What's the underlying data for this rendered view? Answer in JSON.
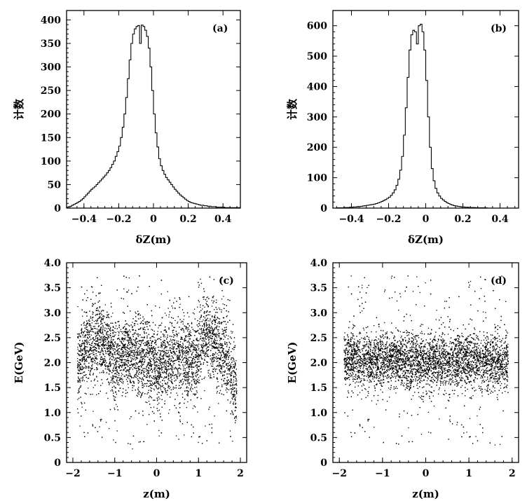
{
  "chart_data": [
    {
      "id": "a",
      "type": "histogram",
      "panel_label": "(a)",
      "xlabel": "δZ(m)",
      "ylabel": "计数",
      "xlim": [
        -0.5,
        0.5
      ],
      "ylim": [
        0,
        420
      ],
      "xticks": [
        -0.4,
        -0.2,
        0,
        0.2,
        0.4
      ],
      "xticklabels": [
        "−0.4",
        "−0.2",
        "0",
        "0.2",
        "0.4"
      ],
      "yticks": [
        0,
        50,
        100,
        150,
        200,
        250,
        300,
        350,
        400
      ],
      "yticklabels": [
        "0",
        "50",
        "100",
        "150",
        "200",
        "250",
        "300",
        "350",
        "400"
      ],
      "bins": {
        "start": -0.5,
        "width": 0.01
      },
      "values": [
        2,
        3,
        4,
        6,
        8,
        10,
        12,
        14,
        17,
        20,
        24,
        28,
        32,
        36,
        40,
        43,
        46,
        50,
        54,
        58,
        62,
        66,
        70,
        75,
        80,
        86,
        93,
        100,
        110,
        120,
        132,
        150,
        172,
        200,
        235,
        275,
        315,
        350,
        370,
        381,
        386,
        388,
        350,
        389,
        386,
        378,
        365,
        340,
        300,
        250,
        200,
        160,
        130,
        105,
        90,
        80,
        72,
        65,
        60,
        55,
        50,
        45,
        40,
        36,
        32,
        28,
        25,
        22,
        19,
        16,
        14,
        12,
        11,
        10,
        9,
        8,
        7,
        6,
        6,
        5,
        5,
        4,
        4,
        3,
        3,
        3,
        2,
        2,
        2,
        2,
        2,
        1,
        1,
        1,
        1,
        1,
        1,
        1,
        1,
        1
      ]
    },
    {
      "id": "b",
      "type": "histogram",
      "panel_label": "(b)",
      "xlabel": "δZ(m)",
      "ylabel": "计数",
      "xlim": [
        -0.5,
        0.5
      ],
      "ylim": [
        0,
        650
      ],
      "xticks": [
        -0.4,
        -0.2,
        0,
        0.2,
        0.4
      ],
      "xticklabels": [
        "−0.4",
        "−0.2",
        "0",
        "0.2",
        "0.4"
      ],
      "yticks": [
        0,
        100,
        200,
        300,
        400,
        500,
        600
      ],
      "yticklabels": [
        "0",
        "100",
        "200",
        "300",
        "400",
        "500",
        "600"
      ],
      "bins": {
        "start": -0.5,
        "width": 0.01
      },
      "values": [
        0,
        0,
        1,
        1,
        1,
        1,
        2,
        2,
        2,
        3,
        3,
        4,
        4,
        5,
        5,
        6,
        7,
        8,
        9,
        10,
        11,
        12,
        13,
        15,
        17,
        19,
        22,
        25,
        28,
        32,
        36,
        42,
        50,
        60,
        75,
        95,
        125,
        170,
        240,
        330,
        430,
        520,
        570,
        585,
        580,
        540,
        600,
        605,
        580,
        520,
        420,
        300,
        200,
        130,
        90,
        65,
        50,
        40,
        32,
        27,
        22,
        18,
        15,
        12,
        10,
        8,
        7,
        6,
        5,
        4,
        4,
        3,
        3,
        2,
        2,
        2,
        2,
        1,
        1,
        1,
        1,
        1,
        1,
        0,
        0,
        0,
        0,
        0,
        0,
        0,
        0,
        0,
        0,
        0,
        0,
        0,
        0,
        0,
        0,
        0
      ]
    },
    {
      "id": "c",
      "type": "scatter",
      "panel_label": "(c)",
      "xlabel": "z(m)",
      "ylabel": "E(GeV)",
      "xlim": [
        -2.15,
        2.15
      ],
      "ylim": [
        0,
        4.0
      ],
      "xticks": [
        -2,
        -1,
        0,
        1,
        2
      ],
      "xticklabels": [
        "−2",
        "−1",
        "0",
        "1",
        "2"
      ],
      "yticks": [
        0,
        0.5,
        1.0,
        1.5,
        2.0,
        2.5,
        3.0,
        3.5,
        4.0
      ],
      "yticklabels": [
        "0",
        "0.5",
        "1.0",
        "1.5",
        "2.0",
        "2.5",
        "3.0",
        "3.5",
        "4.0"
      ],
      "x_range": [
        -1.9,
        1.9
      ],
      "point_count": 7000,
      "mean_energy_profile": {
        "z": [
          -1.9,
          -1.7,
          -1.4,
          -1.2,
          -1.0,
          -0.8,
          -0.5,
          -0.2,
          0.0,
          0.3,
          0.6,
          0.9,
          1.1,
          1.3,
          1.5,
          1.7,
          1.9
        ],
        "E": [
          1.9,
          2.3,
          2.45,
          2.4,
          1.95,
          2.2,
          2.15,
          2.05,
          1.9,
          2.05,
          2.15,
          1.95,
          2.55,
          2.5,
          2.3,
          2.05,
          1.4
        ]
      },
      "spread_gev": 0.4
    },
    {
      "id": "d",
      "type": "scatter",
      "panel_label": "(d)",
      "xlabel": "z(m)",
      "ylabel": "E(GeV)",
      "xlim": [
        -2.15,
        2.15
      ],
      "ylim": [
        0,
        4.0
      ],
      "xticks": [
        -2,
        -1,
        0,
        1,
        2
      ],
      "xticklabels": [
        "−2",
        "−1",
        "0",
        "1",
        "2"
      ],
      "yticks": [
        0,
        0.5,
        1.0,
        1.5,
        2.0,
        2.5,
        3.0,
        3.5,
        4.0
      ],
      "yticklabels": [
        "0",
        "0.5",
        "1.0",
        "1.5",
        "2.0",
        "2.5",
        "3.0",
        "3.5",
        "4.0"
      ],
      "x_range": [
        -1.9,
        1.9
      ],
      "point_count": 7000,
      "mean_energy_profile": {
        "z": [
          -1.9,
          -1.0,
          0.0,
          1.0,
          1.9
        ],
        "E": [
          2.05,
          2.05,
          2.0,
          2.05,
          2.0
        ]
      },
      "spread_gev": 0.28
    }
  ]
}
